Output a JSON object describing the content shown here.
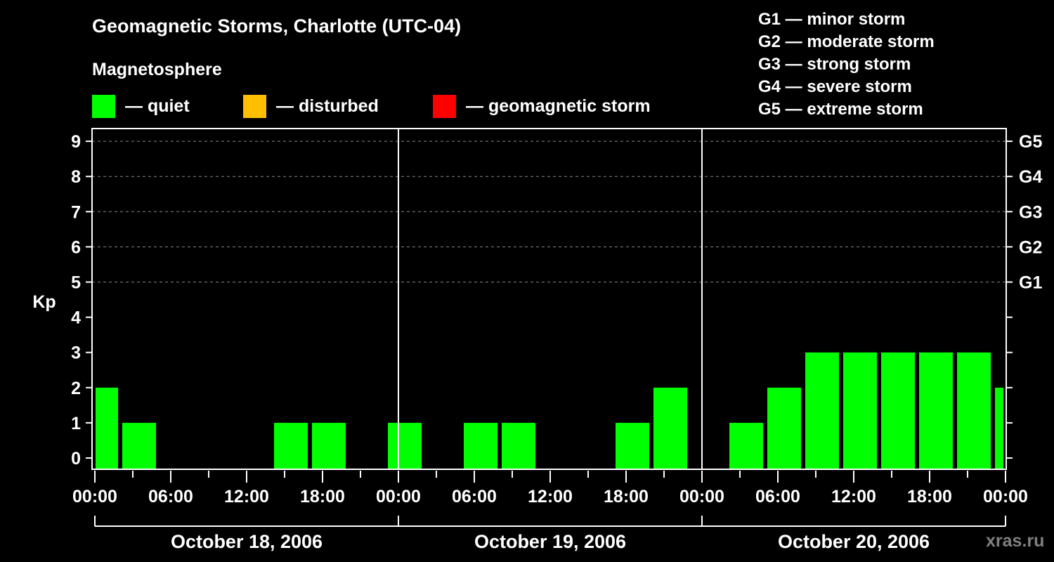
{
  "header": {
    "title": "Geomagnetic Storms, Charlotte (UTC-04)",
    "subtitle": "Magnetosphere",
    "legend": [
      {
        "label": "— quiet",
        "color": "#00ff00"
      },
      {
        "label": "— disturbed",
        "color": "#ffbf00"
      },
      {
        "label": "— geomagnetic storm",
        "color": "#ff0000"
      }
    ]
  },
  "storm_scale": [
    "G1 — minor storm",
    "G2 — moderate storm",
    "G3 — strong storm",
    "G4 — severe storm",
    "G5 — extreme storm"
  ],
  "watermark": "xras.ru",
  "chart_data": {
    "type": "bar",
    "title": "Geomagnetic Storms, Charlotte (UTC-04)",
    "xlabel": "",
    "ylabel": "Kp",
    "ylim": [
      0,
      9
    ],
    "yticks": [
      0,
      1,
      2,
      3,
      4,
      5,
      6,
      7,
      8,
      9
    ],
    "right_axis_ticks": [
      {
        "kp": 5,
        "label": "G1"
      },
      {
        "kp": 6,
        "label": "G2"
      },
      {
        "kp": 7,
        "label": "G3"
      },
      {
        "kp": 8,
        "label": "G4"
      },
      {
        "kp": 9,
        "label": "G5"
      }
    ],
    "grid": "dashed horizontal at Kp 5-9",
    "xtick_labels": [
      "00:00",
      "06:00",
      "12:00",
      "18:00",
      "00:00",
      "06:00",
      "12:00",
      "18:00",
      "00:00",
      "06:00",
      "12:00",
      "18:00",
      "00:00"
    ],
    "days": [
      "October 18, 2006",
      "October 19, 2006",
      "October 20, 2006"
    ],
    "legend": [
      "quiet",
      "disturbed",
      "geomagnetic storm"
    ],
    "series": [
      {
        "name": "Kp (quiet)",
        "color": "#00ff00",
        "bars": [
          {
            "start_h": 0,
            "end_h": 2,
            "value": 2
          },
          {
            "start_h": 2,
            "end_h": 5,
            "value": 1
          },
          {
            "start_h": 5,
            "end_h": 8,
            "value": 0
          },
          {
            "start_h": 8,
            "end_h": 11,
            "value": 0
          },
          {
            "start_h": 11,
            "end_h": 14,
            "value": 0
          },
          {
            "start_h": 14,
            "end_h": 17,
            "value": 1
          },
          {
            "start_h": 17,
            "end_h": 20,
            "value": 1
          },
          {
            "start_h": 20,
            "end_h": 23,
            "value": 0
          },
          {
            "start_h": 23,
            "end_h": 26,
            "value": 1
          },
          {
            "start_h": 26,
            "end_h": 29,
            "value": 0
          },
          {
            "start_h": 29,
            "end_h": 32,
            "value": 1
          },
          {
            "start_h": 32,
            "end_h": 35,
            "value": 1
          },
          {
            "start_h": 35,
            "end_h": 38,
            "value": 0
          },
          {
            "start_h": 38,
            "end_h": 41,
            "value": 0
          },
          {
            "start_h": 41,
            "end_h": 44,
            "value": 1
          },
          {
            "start_h": 44,
            "end_h": 47,
            "value": 2
          },
          {
            "start_h": 47,
            "end_h": 50,
            "value": 0
          },
          {
            "start_h": 50,
            "end_h": 53,
            "value": 1
          },
          {
            "start_h": 53,
            "end_h": 56,
            "value": 2
          },
          {
            "start_h": 56,
            "end_h": 59,
            "value": 3
          },
          {
            "start_h": 59,
            "end_h": 62,
            "value": 3
          },
          {
            "start_h": 62,
            "end_h": 65,
            "value": 3
          },
          {
            "start_h": 65,
            "end_h": 68,
            "value": 3
          },
          {
            "start_h": 68,
            "end_h": 71,
            "value": 3
          },
          {
            "start_h": 71,
            "end_h": 72,
            "value": 2
          }
        ]
      }
    ]
  }
}
